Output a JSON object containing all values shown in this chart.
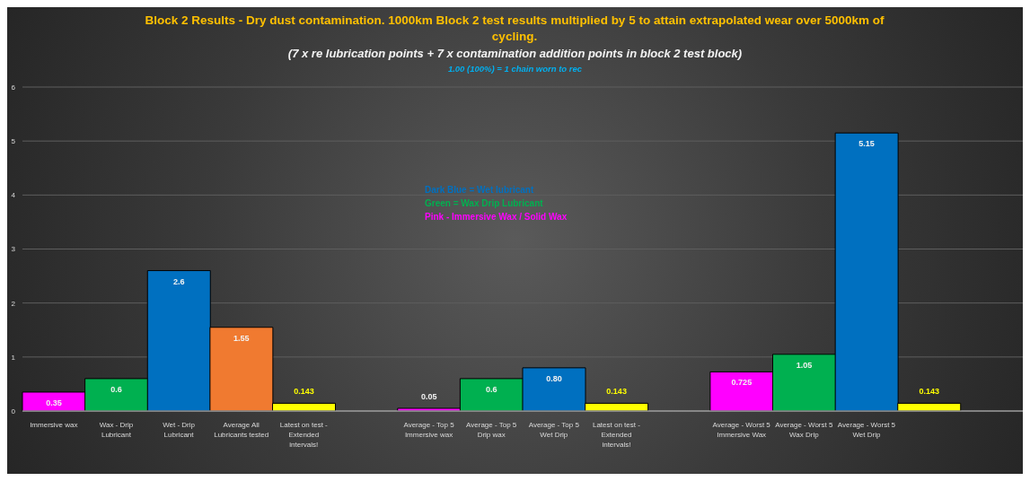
{
  "chart_data": {
    "type": "bar",
    "title": "Block 2 Results - Dry dust contamination. 1000km Block 2 test results multiplied by 5 to attain extrapolated wear over 5000km of cycling.",
    "subtitle": "(7 x re lubrication points + 7 x contamination addition points in block 2 test block)",
    "annotations": [
      "1.00 (100%) = 1 chain worn to rec",
      "Dark Blue = Wet lubricant",
      "Green = Wax Drip Lubricant",
      "Pink - Immersive Wax / Solid Wax"
    ],
    "categories": [
      "Immersive wax",
      "Wax - Drip Lubricant",
      "Wet - Drip Lubricant",
      "Average All Lubricants tested",
      "Latest on test - Extended intervals!",
      null,
      "Average - Top 5 Immersive wax",
      "Average - Top 5 Drip wax",
      "Average - Top 5 Wet Drip",
      "Latest on test - Extended intervals!",
      null,
      "Average - Worst 5 Immersive Wax",
      "Average - Worst 5 Wax Drip",
      "Average - Worst 5 Wet Drip",
      null,
      null
    ],
    "values": [
      0.35,
      0.6,
      2.6,
      1.55,
      0.143,
      null,
      0.05,
      0.6,
      0.8,
      0.143,
      null,
      0.725,
      1.05,
      5.15,
      0.143,
      null
    ],
    "value_labels": [
      "0.35",
      "0.6",
      "2.6",
      "1.55",
      "0.143",
      null,
      "0.05",
      "0.6",
      "0.80",
      "0.143",
      null,
      "0.725",
      "1.05",
      "5.15",
      "0.143",
      null
    ],
    "colors": [
      "#ff00ff",
      "#00b050",
      "#0070c0",
      "#f07a30",
      "#ffff00",
      null,
      "#ff00ff",
      "#00b050",
      "#0070c0",
      "#ffff00",
      null,
      "#ff00ff",
      "#00b050",
      "#0070c0",
      "#ffff00",
      null
    ],
    "ylim": [
      0,
      6
    ],
    "yticks": [
      0,
      1,
      2,
      3,
      4,
      5,
      6
    ],
    "grid": "y"
  }
}
